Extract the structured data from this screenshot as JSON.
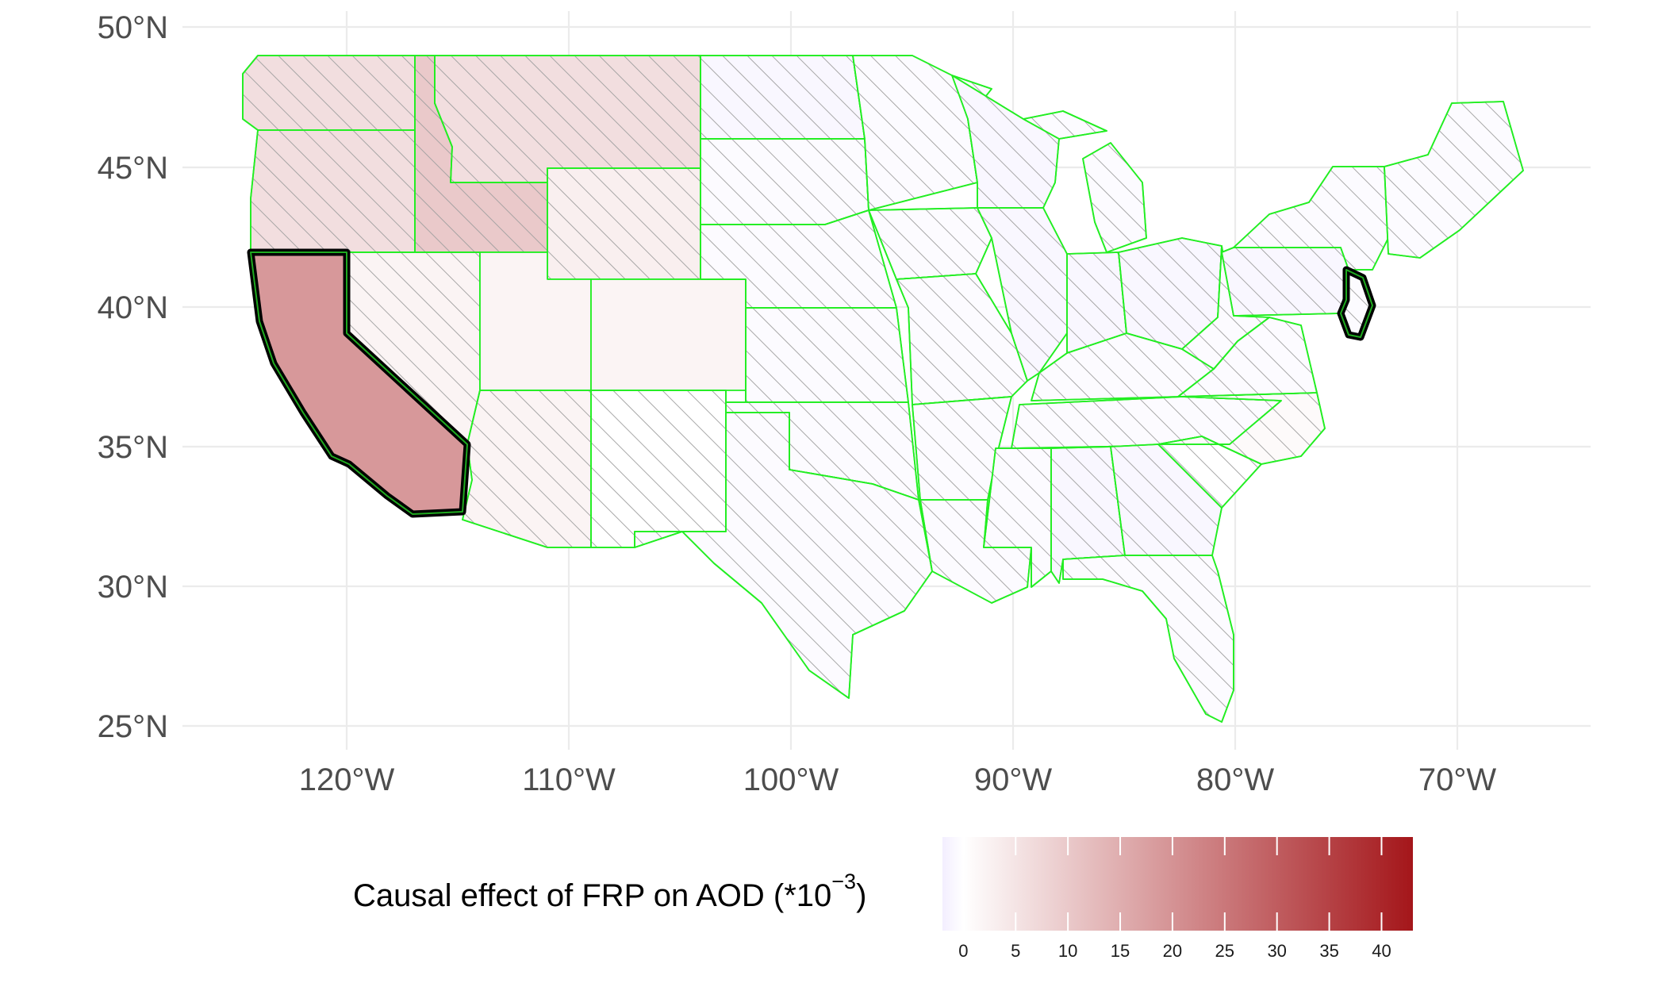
{
  "map": {
    "region": "Contiguous United States",
    "lat_ticks": [
      "50°N",
      "45°N",
      "40°N",
      "35°N",
      "30°N",
      "25°N"
    ],
    "lon_ticks": [
      "120°W",
      "110°W",
      "100°W",
      "90°W",
      "80°W",
      "70°W"
    ],
    "lat_values": [
      50,
      45,
      40,
      35,
      30,
      25
    ],
    "lon_values": [
      -120,
      -110,
      -100,
      -90,
      -80,
      -70
    ],
    "border_color": "#22ee22",
    "hatched_pattern": "diagonal-hatch",
    "highlighted_states": [
      "California",
      "New Jersey"
    ],
    "states": [
      {
        "name": "Washington",
        "value": 6,
        "hatched": true
      },
      {
        "name": "Oregon",
        "value": 6,
        "hatched": true
      },
      {
        "name": "Idaho",
        "value": 10,
        "hatched": true
      },
      {
        "name": "Montana",
        "value": 6,
        "hatched": true
      },
      {
        "name": "Wyoming",
        "value": 3,
        "hatched": true
      },
      {
        "name": "California",
        "value": 19,
        "hatched": false
      },
      {
        "name": "Nevada",
        "value": 2,
        "hatched": true
      },
      {
        "name": "Utah",
        "value": 2,
        "hatched": false
      },
      {
        "name": "Colorado",
        "value": 2,
        "hatched": false
      },
      {
        "name": "Arizona",
        "value": 2,
        "hatched": true
      },
      {
        "name": "New Mexico",
        "value": 0,
        "hatched": true
      },
      {
        "name": "North Dakota",
        "value": -1,
        "hatched": true
      },
      {
        "name": "South Dakota",
        "value": -0.5,
        "hatched": true
      },
      {
        "name": "Nebraska",
        "value": -0.5,
        "hatched": true
      },
      {
        "name": "Kansas",
        "value": -0.5,
        "hatched": true
      },
      {
        "name": "Oklahoma",
        "value": -0.5,
        "hatched": true
      },
      {
        "name": "Texas",
        "value": -0.5,
        "hatched": true
      },
      {
        "name": "Minnesota",
        "value": -0.5,
        "hatched": true
      },
      {
        "name": "Iowa",
        "value": -0.5,
        "hatched": true
      },
      {
        "name": "Missouri",
        "value": -0.5,
        "hatched": true
      },
      {
        "name": "Arkansas",
        "value": -0.5,
        "hatched": true
      },
      {
        "name": "Louisiana",
        "value": -0.5,
        "hatched": true
      },
      {
        "name": "Wisconsin",
        "value": -1,
        "hatched": true
      },
      {
        "name": "Illinois",
        "value": -1,
        "hatched": true
      },
      {
        "name": "Michigan",
        "value": -0.5,
        "hatched": true
      },
      {
        "name": "Indiana",
        "value": -1,
        "hatched": true
      },
      {
        "name": "Ohio",
        "value": -1,
        "hatched": true
      },
      {
        "name": "Kentucky",
        "value": -0.5,
        "hatched": true
      },
      {
        "name": "Tennessee",
        "value": -0.5,
        "hatched": true
      },
      {
        "name": "Mississippi",
        "value": -0.5,
        "hatched": true
      },
      {
        "name": "Alabama",
        "value": -1,
        "hatched": true
      },
      {
        "name": "Georgia",
        "value": -1,
        "hatched": true
      },
      {
        "name": "Florida",
        "value": -0.5,
        "hatched": true
      },
      {
        "name": "South Carolina",
        "value": 0,
        "hatched": true
      },
      {
        "name": "North Carolina",
        "value": 1,
        "hatched": true
      },
      {
        "name": "Virginia",
        "value": -0.5,
        "hatched": true
      },
      {
        "name": "West Virginia",
        "value": -0.5,
        "hatched": true
      },
      {
        "name": "Pennsylvania",
        "value": -1,
        "hatched": true
      },
      {
        "name": "New York",
        "value": -0.5,
        "hatched": true
      },
      {
        "name": "New Jersey",
        "value": -0.5,
        "hatched": true
      },
      {
        "name": "New England",
        "value": -0.5,
        "hatched": true
      }
    ]
  },
  "legend": {
    "title": "Causal effect of FRP on AOD (*10",
    "title_superscript": "−3",
    "title_close": ")",
    "min": -2,
    "max": 43,
    "ticks": [
      0,
      5,
      10,
      15,
      20,
      25,
      30,
      35,
      40
    ],
    "tick_labels": [
      "0",
      "5",
      "10",
      "15",
      "20",
      "25",
      "30",
      "35",
      "40"
    ],
    "colors": {
      "low": "#f3eeff",
      "mid": "#ffffff",
      "high": "#a4161a"
    }
  }
}
